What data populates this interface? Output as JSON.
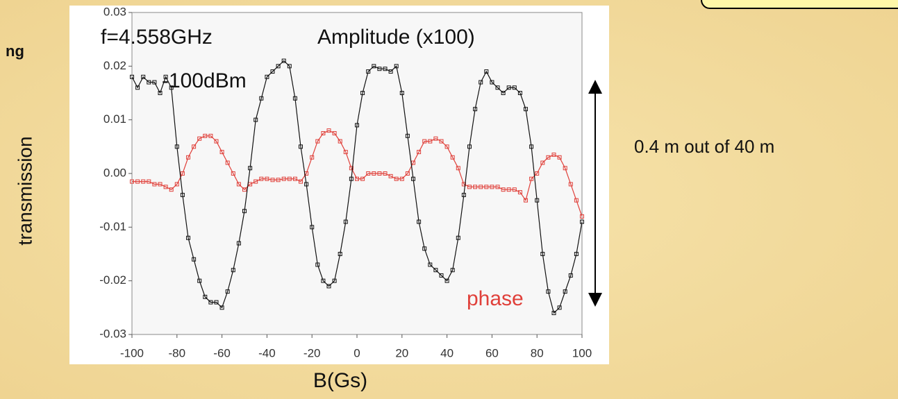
{
  "slide": {
    "cut_text": "ng",
    "note": "0.4 m out of 40 m"
  },
  "chart_data": {
    "type": "line",
    "xlabel": "B(Gs)",
    "ylabel": "transmission",
    "annotations": [
      "f=4.558GHz",
      "-100dBm",
      "Amplitude (x100)",
      "phase"
    ],
    "x": [
      -100,
      -97.5,
      -95,
      -92.5,
      -90,
      -87.5,
      -85,
      -82.5,
      -80,
      -77.5,
      -75,
      -72.5,
      -70,
      -67.5,
      -65,
      -62.5,
      -60,
      -57.5,
      -55,
      -52.5,
      -50,
      -47.5,
      -45,
      -42.5,
      -40,
      -37.5,
      -35,
      -32.5,
      -30,
      -27.5,
      -25,
      -22.5,
      -20,
      -17.5,
      -15,
      -12.5,
      -10,
      -7.5,
      -5,
      -2.5,
      0,
      2.5,
      5,
      7.5,
      10,
      12.5,
      15,
      17.5,
      20,
      22.5,
      25,
      27.5,
      30,
      32.5,
      35,
      37.5,
      40,
      42.5,
      45,
      47.5,
      50,
      52.5,
      55,
      57.5,
      60,
      62.5,
      65,
      67.5,
      70,
      72.5,
      75,
      77.5,
      80,
      82.5,
      85,
      87.5,
      90,
      92.5,
      95,
      97.5,
      100
    ],
    "series": [
      {
        "color": "#111111",
        "values": [
          0.018,
          0.016,
          0.018,
          0.017,
          0.017,
          0.015,
          0.018,
          0.016,
          0.005,
          -0.004,
          -0.012,
          -0.016,
          -0.02,
          -0.023,
          -0.024,
          -0.024,
          -0.025,
          -0.022,
          -0.018,
          -0.013,
          -0.007,
          0.001,
          0.01,
          0.014,
          0.018,
          0.019,
          0.02,
          0.021,
          0.02,
          0.014,
          0.005,
          -0.002,
          -0.01,
          -0.017,
          -0.02,
          -0.021,
          -0.02,
          -0.015,
          -0.009,
          -0.001,
          0.009,
          0.015,
          0.019,
          0.02,
          0.0195,
          0.0195,
          0.019,
          0.02,
          0.015,
          0.007,
          -0.001,
          -0.009,
          -0.014,
          -0.017,
          -0.018,
          -0.019,
          -0.02,
          -0.018,
          -0.012,
          -0.004,
          0.005,
          0.012,
          0.017,
          0.019,
          0.017,
          0.016,
          0.015,
          0.016,
          0.016,
          0.015,
          0.012,
          0.005,
          -0.005,
          -0.015,
          -0.022,
          -0.026,
          -0.025,
          -0.022,
          -0.019,
          -0.015,
          -0.009
        ]
      },
      {
        "color": "#e0403a",
        "values": [
          -0.0015,
          -0.0015,
          -0.0015,
          -0.0015,
          -0.002,
          -0.002,
          -0.0025,
          -0.003,
          -0.002,
          0.0,
          0.003,
          0.005,
          0.0065,
          0.007,
          0.007,
          0.006,
          0.004,
          0.002,
          0.0,
          -0.002,
          -0.003,
          -0.002,
          -0.0015,
          -0.001,
          -0.001,
          -0.0012,
          -0.0012,
          -0.001,
          -0.001,
          -0.001,
          -0.0015,
          0.0,
          0.003,
          0.006,
          0.0075,
          0.008,
          0.0075,
          0.006,
          0.004,
          0.001,
          -0.001,
          -0.001,
          0.0,
          0.0,
          0.0,
          0.0,
          -0.0005,
          -0.001,
          -0.001,
          0.0,
          0.002,
          0.004,
          0.006,
          0.006,
          0.0065,
          0.006,
          0.005,
          0.003,
          0.001,
          -0.002,
          -0.0025,
          -0.0025,
          -0.0025,
          -0.0025,
          -0.0025,
          -0.0025,
          -0.003,
          -0.003,
          -0.003,
          -0.0035,
          -0.005,
          -0.001,
          0.0,
          0.002,
          0.003,
          0.0035,
          0.003,
          0.001,
          -0.002,
          -0.005,
          -0.008
        ]
      }
    ],
    "xlim": [
      -100,
      100
    ],
    "xticks": [
      -100,
      -80,
      -60,
      -40,
      -20,
      0,
      20,
      40,
      60,
      80,
      100
    ],
    "ylim": [
      -0.03,
      0.03
    ],
    "yticks": [
      -0.03,
      -0.02,
      -0.01,
      {
        "value": 0,
        "label": "0.00"
      },
      0.01,
      0.02,
      0.03
    ]
  }
}
